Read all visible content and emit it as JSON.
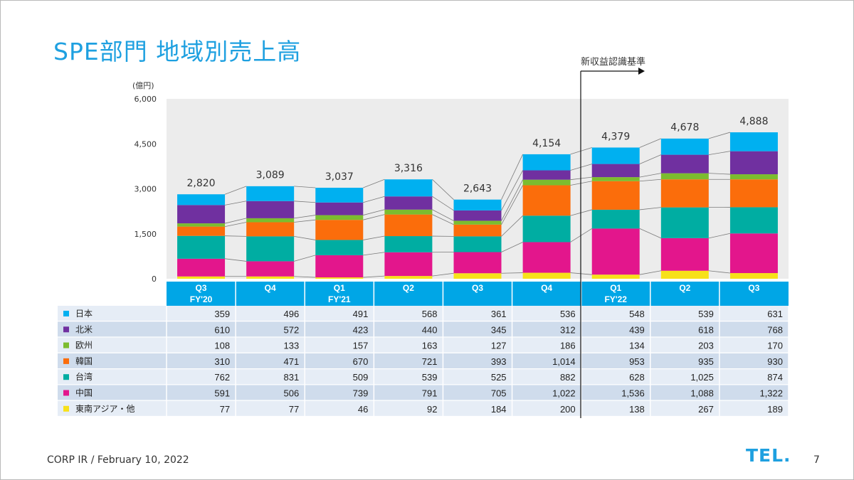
{
  "title": "SPE部門 地域別売上高",
  "unit_label": "(億円)",
  "standard_label": "新収益認識基準",
  "footer": "CORP IR / February 10, 2022",
  "logo": "TEL.",
  "page_number": "7",
  "colors": {
    "header_blue": "#00a6e6",
    "row_odd": "#e6edf6",
    "row_even": "#cfdcec",
    "plot_bg": "#ececec"
  },
  "chart_data": {
    "type": "bar",
    "stacked": true,
    "ylim": [
      0,
      6000
    ],
    "yticks": [
      "0",
      "1,500",
      "3,000",
      "4,500",
      "6,000"
    ],
    "ytick_values": [
      0,
      1500,
      3000,
      4500,
      6000
    ],
    "categories": [
      {
        "q": "Q3",
        "fy": "FY'20"
      },
      {
        "q": "Q4",
        "fy": ""
      },
      {
        "q": "Q1",
        "fy": "FY'21"
      },
      {
        "q": "Q2",
        "fy": ""
      },
      {
        "q": "Q3",
        "fy": ""
      },
      {
        "q": "Q4",
        "fy": ""
      },
      {
        "q": "Q1",
        "fy": "FY'22"
      },
      {
        "q": "Q2",
        "fy": ""
      },
      {
        "q": "Q3",
        "fy": ""
      }
    ],
    "totals": [
      2820,
      3089,
      3037,
      3316,
      2643,
      4154,
      4379,
      4678,
      4888
    ],
    "total_labels": [
      "2,820",
      "3,089",
      "3,037",
      "3,316",
      "2,643",
      "4,154",
      "4,379",
      "4,678",
      "4,888"
    ],
    "series": [
      {
        "name": "日本",
        "color": "#00b0f0",
        "values": [
          359,
          496,
          491,
          568,
          361,
          536,
          548,
          539,
          631
        ],
        "labels": [
          "359",
          "496",
          "491",
          "568",
          "361",
          "536",
          "548",
          "539",
          "631"
        ]
      },
      {
        "name": "北米",
        "color": "#7030a0",
        "values": [
          610,
          572,
          423,
          440,
          345,
          312,
          439,
          618,
          768
        ],
        "labels": [
          "610",
          "572",
          "423",
          "440",
          "345",
          "312",
          "439",
          "618",
          "768"
        ]
      },
      {
        "name": "欧州",
        "color": "#7cbc2f",
        "values": [
          108,
          133,
          157,
          163,
          127,
          186,
          134,
          203,
          170
        ],
        "labels": [
          "108",
          "133",
          "157",
          "163",
          "127",
          "186",
          "134",
          "203",
          "170"
        ]
      },
      {
        "name": "韓国",
        "color": "#fb6d0b",
        "values": [
          310,
          471,
          670,
          721,
          393,
          1014,
          953,
          935,
          930
        ],
        "labels": [
          "310",
          "471",
          "670",
          "721",
          "393",
          "1,014",
          "953",
          "935",
          "930"
        ]
      },
      {
        "name": "台湾",
        "color": "#00ada2",
        "values": [
          762,
          831,
          509,
          539,
          525,
          882,
          628,
          1025,
          874
        ],
        "labels": [
          "762",
          "831",
          "509",
          "539",
          "525",
          "882",
          "628",
          "1,025",
          "874"
        ]
      },
      {
        "name": "中国",
        "color": "#e3168c",
        "values": [
          591,
          506,
          739,
          791,
          705,
          1022,
          1536,
          1088,
          1322
        ],
        "labels": [
          "591",
          "506",
          "739",
          "791",
          "705",
          "1,022",
          "1,536",
          "1,088",
          "1,322"
        ]
      },
      {
        "name": "東南アジア・他",
        "color": "#f7e11a",
        "values": [
          77,
          77,
          46,
          92,
          184,
          200,
          138,
          267,
          189
        ],
        "labels": [
          "77",
          "77",
          "46",
          "92",
          "184",
          "200",
          "138",
          "267",
          "189"
        ]
      }
    ]
  }
}
